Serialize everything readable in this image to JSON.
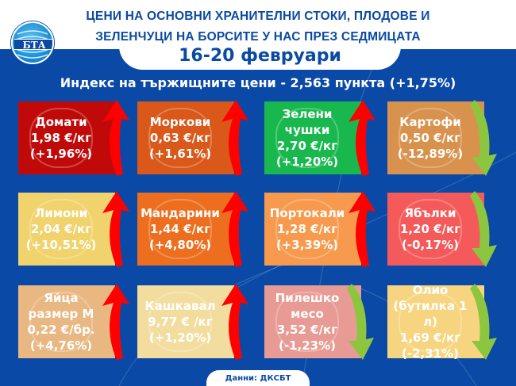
{
  "header": {
    "title_line1": "ЦЕНИ НА ОСНОВНИ ХРАНИТЕЛНИ СТОКИ, ПЛОДОВЕ И",
    "title_line2": "ЗЕЛЕНЧУЦИ НА БОРСИТЕ У НАС ПРЕЗ СЕДМИЦАТА",
    "dates": "16-20 февруари",
    "logo_text": "БТА"
  },
  "index": {
    "text": "Индекс на тържищните цени - 2,563 пункта (+1,75%)"
  },
  "colors": {
    "background": "#0a4aa6",
    "up_arrow": "#ff0000",
    "down_arrow": "#8cc63f"
  },
  "cards": [
    {
      "name": "Домати",
      "price": "1,98 €/кг",
      "change": "(+1,96%)",
      "direction": "up",
      "color": "#c00a0a",
      "icon": "tomato-icon"
    },
    {
      "name": "Моркови",
      "price": "0,63 €/кг",
      "change": "(+1,61%)",
      "direction": "up",
      "color": "#d9581a",
      "icon": "carrot-icon"
    },
    {
      "name": "Зелени чушки",
      "price": "2,70 €/кг",
      "change": "(+1,20%)",
      "direction": "up",
      "color": "#18b84e",
      "icon": "pepper-icon"
    },
    {
      "name": "Картофи",
      "price": "0,50 €/кг",
      "change": "(-12,89%)",
      "direction": "down",
      "color": "#d8924e",
      "icon": "potato-icon"
    },
    {
      "name": "Лимони",
      "price": "2,04 €/кг",
      "change": "(+10,51%)",
      "direction": "up",
      "color": "#f0d36c",
      "icon": "lemon-icon"
    },
    {
      "name": "Мандарини",
      "price": "1,44 €/кг",
      "change": "(+4,80%)",
      "direction": "up",
      "color": "#ec6e1e",
      "icon": "tangerine-icon"
    },
    {
      "name": "Портокали",
      "price": "1,28 €/кг",
      "change": "(+3,39%)",
      "direction": "up",
      "color": "#f79a4e",
      "icon": "orange-icon"
    },
    {
      "name": "Ябълки",
      "price": "1,20 €/кг",
      "change": "(-0,17%)",
      "direction": "down",
      "color": "#f45a5a",
      "icon": "apple-icon"
    },
    {
      "name": "Яйца размер М",
      "price": "0,22 €/бр.",
      "change": "(+4,76%)",
      "direction": "up",
      "color": "#e9b782",
      "icon": "egg-icon"
    },
    {
      "name": "Кашкавал",
      "price": "9,77 € /кг",
      "change": "(+1,20%)",
      "direction": "up",
      "color": "#f2dd9e",
      "icon": "cheese-icon"
    },
    {
      "name": "Пилешко месо",
      "price": "3,52 €/кг",
      "change": "(-1,23%)",
      "direction": "down",
      "color": "#e89a94",
      "icon": "chicken-icon"
    },
    {
      "name": "Олио (бутилка 1 л)",
      "price": "1,69 €/кг",
      "change": "(-2,31%)",
      "direction": "down",
      "color": "#f7d580",
      "icon": "oil-bottle-icon"
    }
  ],
  "footer": {
    "source": "Данни: ДКСБТ"
  }
}
